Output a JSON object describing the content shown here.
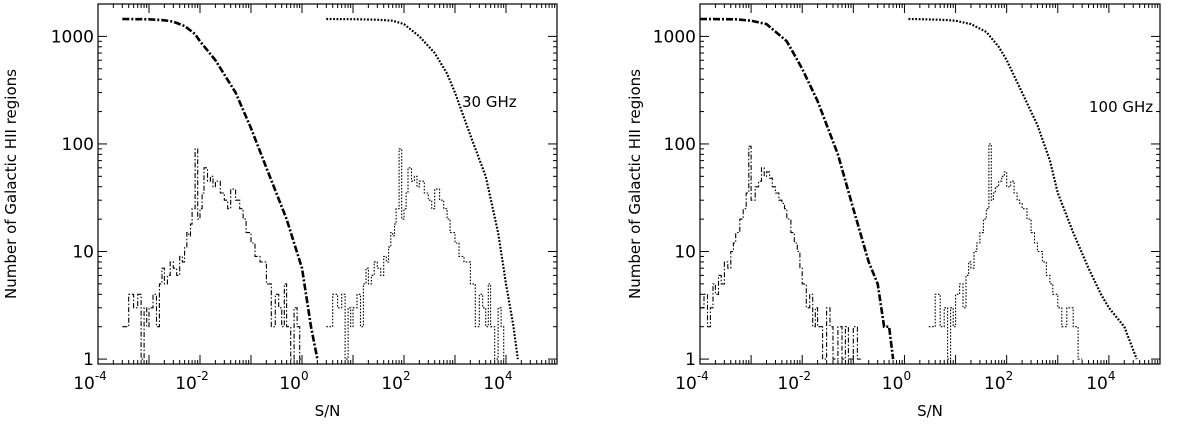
{
  "chart_data": [
    {
      "type": "line",
      "annotation": "30 GHz",
      "xlabel": "S/N",
      "ylabel": "Number of Galactic HII regions",
      "xscale": "log",
      "yscale": "log",
      "xlim": [
        0.0001,
        100000
      ],
      "ylim": [
        0.9,
        2000
      ],
      "x_ticks": [
        {
          "base": "10",
          "exp": "-4"
        },
        {
          "base": "10",
          "exp": "-2"
        },
        {
          "base": "10",
          "exp": "0"
        },
        {
          "base": "10",
          "exp": "2"
        },
        {
          "base": "10",
          "exp": "4"
        }
      ],
      "y_ticks": [
        "1",
        "10",
        "100",
        "1000"
      ],
      "series": [
        {
          "style": "dash-dot-cumulative",
          "x": [
            0.0003,
            0.001,
            0.002,
            0.003,
            0.005,
            0.008,
            0.01,
            0.02,
            0.05,
            0.1,
            0.2,
            0.5,
            1,
            1.5,
            2
          ],
          "y": [
            1450,
            1440,
            1410,
            1370,
            1250,
            1050,
            900,
            600,
            300,
            140,
            60,
            20,
            7,
            2,
            1
          ]
        },
        {
          "style": "dash-dot-differential",
          "x": [
            0.0003,
            0.0004,
            0.0005,
            0.0006,
            0.0007,
            0.0008,
            0.0009,
            0.001,
            0.0012,
            0.0014,
            0.0016,
            0.0018,
            0.002,
            0.0023,
            0.0026,
            0.003,
            0.0035,
            0.004,
            0.0045,
            0.005,
            0.0055,
            0.006,
            0.0065,
            0.007,
            0.008,
            0.009,
            0.01,
            0.011,
            0.012,
            0.014,
            0.016,
            0.018,
            0.02,
            0.025,
            0.03,
            0.035,
            0.04,
            0.05,
            0.06,
            0.07,
            0.08,
            0.1,
            0.12,
            0.15,
            0.2,
            0.25,
            0.3,
            0.35,
            0.4,
            0.45,
            0.5,
            0.6,
            0.7,
            0.8,
            0.9,
            1.0
          ],
          "y": [
            2,
            4,
            3,
            4,
            1,
            3,
            2,
            3,
            4,
            2,
            5,
            7,
            5,
            6,
            8,
            7,
            6,
            9,
            8,
            11,
            15,
            14,
            18,
            25,
            90,
            20,
            25,
            35,
            60,
            45,
            50,
            40,
            45,
            35,
            30,
            25,
            38,
            30,
            25,
            20,
            15,
            12,
            9,
            8,
            5,
            2,
            4,
            3,
            2,
            5,
            2,
            1,
            3,
            2,
            1,
            1
          ]
        },
        {
          "style": "dotted-cumulative",
          "x": [
            3,
            10,
            30,
            60,
            100,
            200,
            400,
            700,
            1000,
            2000,
            4000,
            7000,
            10000,
            14000,
            17000
          ],
          "y": [
            1450,
            1445,
            1430,
            1400,
            1300,
            1000,
            700,
            450,
            300,
            120,
            50,
            15,
            5,
            2,
            1
          ]
        },
        {
          "style": "dotted-differential",
          "x": [
            3,
            4,
            5,
            6,
            7,
            8,
            9,
            10,
            12,
            14,
            16,
            18,
            20,
            23,
            26,
            30,
            35,
            40,
            45,
            50,
            55,
            60,
            65,
            70,
            80,
            90,
            100,
            110,
            120,
            140,
            160,
            180,
            200,
            250,
            300,
            350,
            400,
            500,
            600,
            700,
            800,
            1000,
            1200,
            1500,
            2000,
            2500,
            3000,
            3500,
            4000,
            4500,
            5000,
            6000,
            7000,
            8000,
            9000,
            10000
          ],
          "y": [
            2,
            4,
            3,
            4,
            1,
            3,
            2,
            3,
            4,
            2,
            5,
            7,
            5,
            6,
            8,
            7,
            6,
            9,
            8,
            11,
            15,
            14,
            18,
            25,
            90,
            20,
            25,
            35,
            60,
            45,
            50,
            40,
            45,
            35,
            30,
            25,
            38,
            30,
            25,
            20,
            15,
            12,
            9,
            8,
            5,
            2,
            4,
            3,
            2,
            5,
            2,
            1,
            3,
            2,
            1,
            1
          ]
        }
      ]
    },
    {
      "type": "line",
      "annotation": "100 GHz",
      "xlabel": "S/N",
      "ylabel": "Number of Galactic HII regions",
      "xscale": "log",
      "yscale": "log",
      "xlim": [
        0.0001,
        100000
      ],
      "ylim": [
        0.9,
        2000
      ],
      "x_ticks": [
        {
          "base": "10",
          "exp": "-4"
        },
        {
          "base": "10",
          "exp": "-2"
        },
        {
          "base": "10",
          "exp": "0"
        },
        {
          "base": "10",
          "exp": "2"
        },
        {
          "base": "10",
          "exp": "4"
        }
      ],
      "y_ticks": [
        "1",
        "10",
        "100",
        "1000"
      ],
      "series": [
        {
          "style": "dash-dot-cumulative",
          "x": [
            0.0001,
            0.0005,
            0.001,
            0.002,
            0.005,
            0.01,
            0.02,
            0.05,
            0.1,
            0.2,
            0.3,
            0.4,
            0.5,
            0.6
          ],
          "y": [
            1450,
            1440,
            1400,
            1300,
            900,
            500,
            250,
            80,
            25,
            8,
            5,
            2,
            2,
            1
          ]
        },
        {
          "style": "dash-dot-differential",
          "x": [
            0.0001,
            0.00012,
            0.00014,
            0.00016,
            0.00018,
            0.0002,
            0.00023,
            0.00026,
            0.0003,
            0.00035,
            0.0004,
            0.00045,
            0.0005,
            0.0006,
            0.0007,
            0.0008,
            0.0009,
            0.001,
            0.0012,
            0.0014,
            0.0016,
            0.0018,
            0.002,
            0.0023,
            0.0026,
            0.003,
            0.0035,
            0.004,
            0.0045,
            0.005,
            0.006,
            0.007,
            0.008,
            0.009,
            0.01,
            0.012,
            0.014,
            0.016,
            0.018,
            0.02,
            0.025,
            0.03,
            0.035,
            0.04,
            0.05,
            0.06,
            0.07,
            0.08,
            0.09,
            0.1,
            0.12,
            0.14
          ],
          "y": [
            3,
            4,
            2,
            3,
            5,
            4,
            6,
            5,
            8,
            7,
            10,
            12,
            15,
            20,
            25,
            35,
            95,
            30,
            40,
            45,
            60,
            50,
            55,
            48,
            40,
            35,
            30,
            28,
            25,
            20,
            15,
            12,
            10,
            7,
            5,
            3,
            4,
            2,
            3,
            2,
            1,
            3,
            2,
            1,
            2,
            1,
            2,
            1,
            1,
            2,
            1,
            1
          ]
        },
        {
          "style": "dotted-cumulative",
          "x": [
            1.2,
            2,
            5,
            10,
            20,
            40,
            70,
            100,
            200,
            400,
            700,
            1000,
            2000,
            4000,
            7000,
            10000,
            20000,
            35000
          ],
          "y": [
            1450,
            1445,
            1430,
            1400,
            1300,
            1100,
            800,
            600,
            300,
            150,
            70,
            35,
            15,
            7,
            4,
            3,
            2,
            1
          ]
        },
        {
          "style": "dotted-differential",
          "x": [
            3,
            4,
            5,
            6,
            7,
            8,
            9,
            10,
            12,
            14,
            16,
            18,
            20,
            23,
            26,
            30,
            35,
            40,
            45,
            50,
            55,
            60,
            70,
            80,
            90,
            100,
            120,
            140,
            160,
            180,
            200,
            250,
            300,
            350,
            400,
            500,
            600,
            700,
            800,
            1000,
            1200,
            1500,
            2000,
            2500,
            3000
          ],
          "y": [
            2,
            4,
            2,
            3,
            1,
            3,
            2,
            4,
            5,
            3,
            6,
            8,
            7,
            10,
            12,
            15,
            20,
            25,
            100,
            30,
            35,
            40,
            45,
            50,
            55,
            40,
            45,
            35,
            30,
            28,
            25,
            20,
            15,
            12,
            10,
            8,
            6,
            5,
            4,
            3,
            2,
            3,
            2,
            1,
            1
          ]
        }
      ]
    }
  ]
}
